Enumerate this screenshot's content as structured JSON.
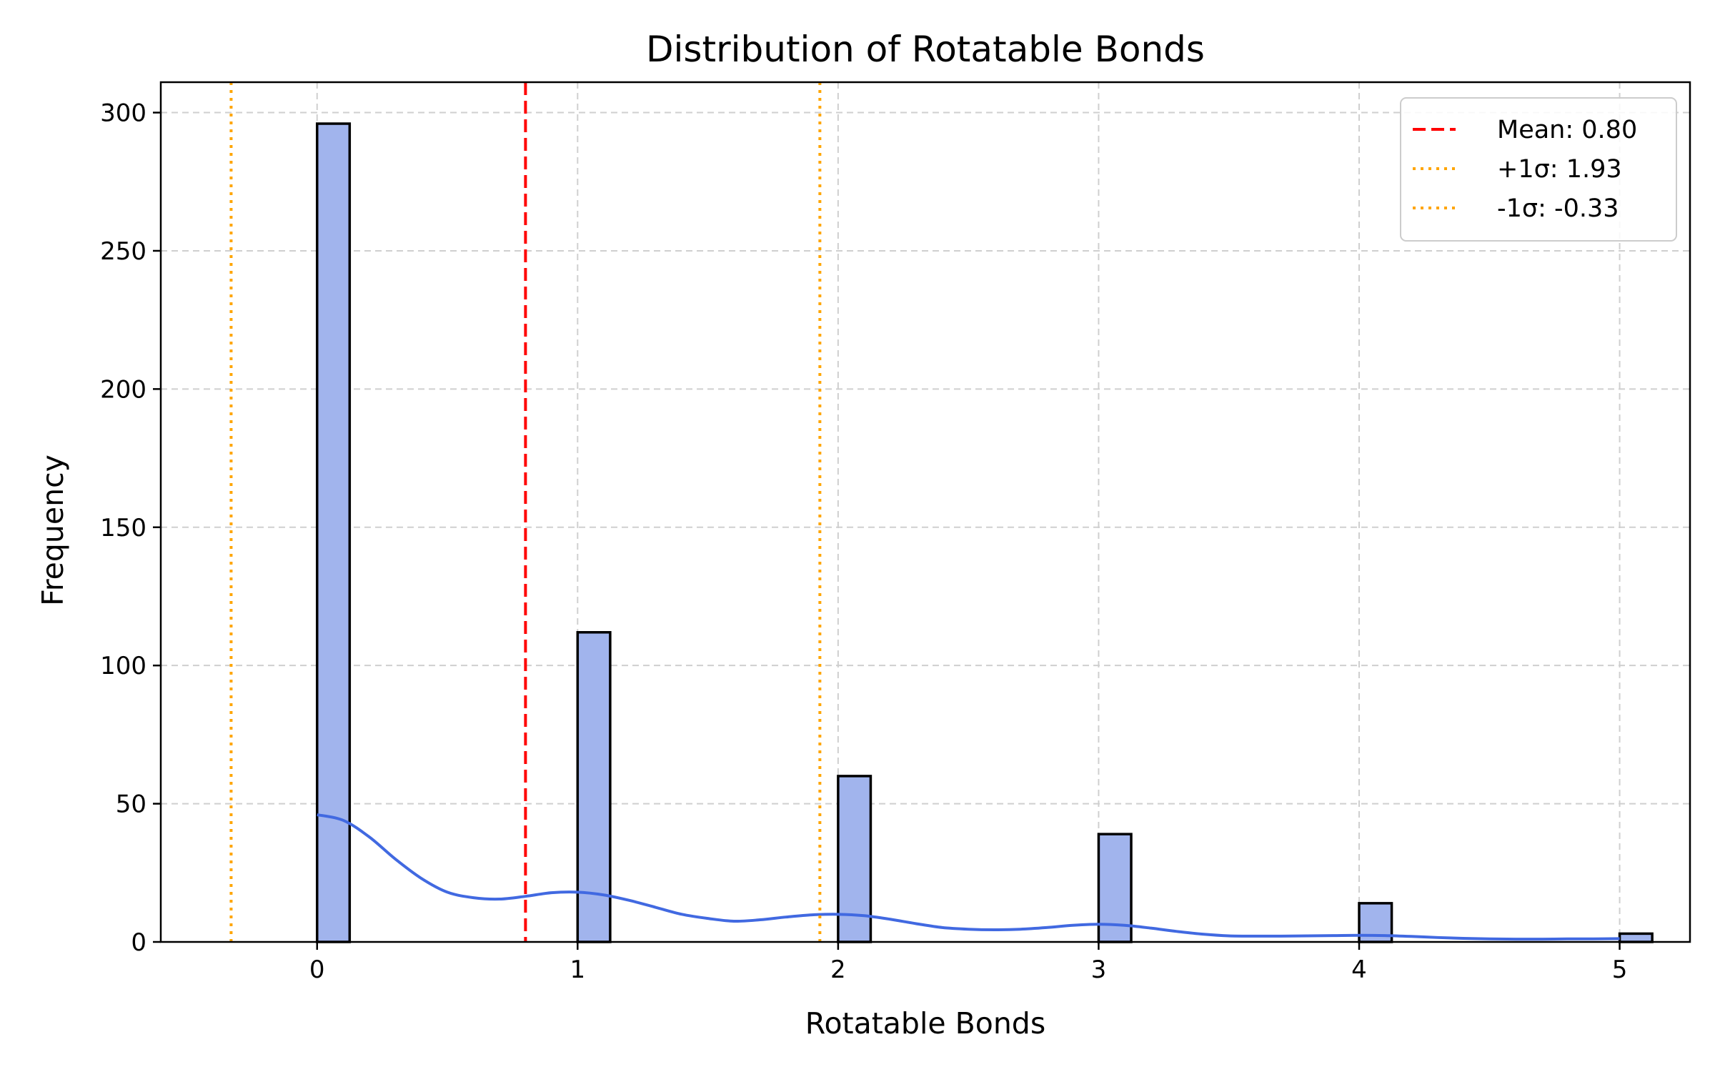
{
  "chart_data": {
    "type": "bar",
    "title": "Distribution of Rotatable Bonds",
    "xlabel": "Rotatable Bonds",
    "ylabel": "Frequency",
    "xlim": [
      -0.6,
      5.27
    ],
    "ylim": [
      0,
      311
    ],
    "xticks": [
      0,
      1,
      2,
      3,
      4,
      5
    ],
    "yticks": [
      0,
      50,
      100,
      150,
      200,
      250,
      300
    ],
    "grid": true,
    "bar_width": 0.125,
    "bars": [
      {
        "x": 0,
        "value": 296
      },
      {
        "x": 1,
        "value": 112
      },
      {
        "x": 2,
        "value": 60
      },
      {
        "x": 3,
        "value": 39
      },
      {
        "x": 4,
        "value": 14
      },
      {
        "x": 5,
        "value": 3
      }
    ],
    "kde": {
      "x": [
        0,
        0.1,
        0.2,
        0.3,
        0.4,
        0.5,
        0.6,
        0.7,
        0.8,
        0.9,
        1.0,
        1.1,
        1.2,
        1.3,
        1.4,
        1.5,
        1.6,
        1.7,
        1.8,
        1.9,
        2.0,
        2.1,
        2.2,
        2.3,
        2.4,
        2.5,
        2.6,
        2.7,
        2.8,
        2.9,
        3.0,
        3.1,
        3.2,
        3.3,
        3.4,
        3.5,
        3.6,
        3.7,
        3.8,
        3.9,
        4.0,
        4.1,
        4.2,
        4.3,
        4.4,
        4.5,
        4.6,
        4.7,
        4.8,
        4.9,
        5.0
      ],
      "y": [
        46,
        44,
        38,
        30,
        23,
        18,
        16,
        15.5,
        16.5,
        17.8,
        18,
        17,
        15,
        12.5,
        10,
        8.5,
        7.5,
        8,
        9,
        9.8,
        10,
        9.5,
        8.2,
        6.6,
        5.2,
        4.6,
        4.4,
        4.6,
        5.2,
        6,
        6.4,
        6,
        5,
        3.8,
        2.8,
        2.2,
        2.1,
        2.1,
        2.2,
        2.3,
        2.4,
        2.3,
        2,
        1.6,
        1.3,
        1.1,
        1,
        1,
        1.1,
        1.1,
        1.2
      ]
    },
    "lines": [
      {
        "x": 0.8,
        "label": "Mean: 0.80",
        "color": "#ff0000",
        "style": "dashed"
      },
      {
        "x": 1.93,
        "label": "+1σ: 1.93",
        "color": "#ffa500",
        "style": "dotted"
      },
      {
        "x": -0.33,
        "label": "-1σ: -0.33",
        "color": "#ffa500",
        "style": "dotted"
      }
    ],
    "legend_position": "top-right",
    "colors": {
      "bar_fill": "#a1b4ed",
      "bar_edge": "#000000",
      "kde": "#4169e1",
      "grid": "#cfcfcf"
    }
  }
}
